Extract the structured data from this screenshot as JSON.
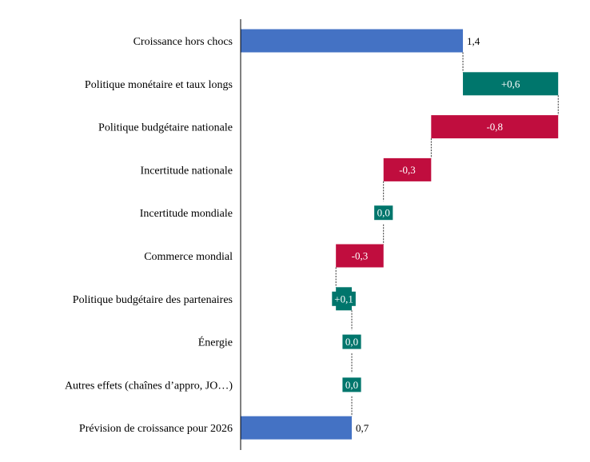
{
  "chart_data": {
    "type": "bar",
    "subtype": "waterfall",
    "orientation": "horizontal",
    "title": "",
    "xlabel": "",
    "ylabel": "",
    "grid": false,
    "categories": [
      "Croissance hors chocs",
      "Politique monétaire et taux longs",
      "Politique budgétaire nationale",
      "Incertitude nationale",
      "Incertitude mondiale",
      "Commerce mondial",
      "Politique budgétaire des partenaires",
      "Énergie",
      "Autres effets (chaînes d’appro, JO…)",
      "Prévision de croissance pour 2026"
    ],
    "values": [
      1.4,
      0.6,
      -0.8,
      -0.3,
      0.0,
      -0.3,
      0.1,
      0.0,
      0.0,
      0.7
    ],
    "kinds": [
      "total",
      "delta",
      "delta",
      "delta",
      "delta",
      "delta",
      "delta",
      "delta",
      "delta",
      "total"
    ],
    "value_labels": [
      "1,4",
      "+0,6",
      "-0,8",
      "-0,3",
      "0,0",
      "-0,3",
      "+0,1",
      "0,0",
      "0,0",
      "0,7"
    ],
    "colors": {
      "total": "#4472c4",
      "increase": "#00766c",
      "decrease": "#c00d3e",
      "axis": "#000000",
      "connector": "#000000"
    }
  }
}
